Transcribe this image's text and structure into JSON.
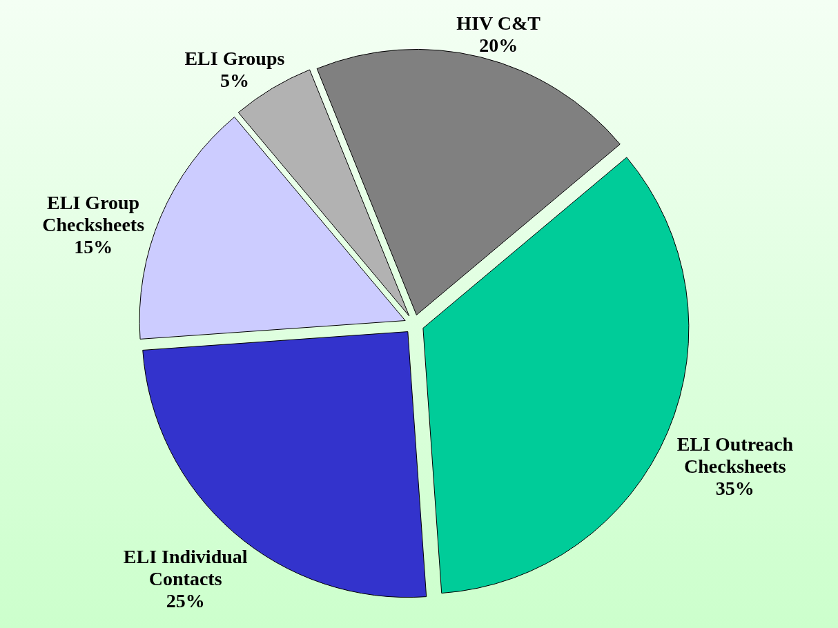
{
  "chart_data": {
    "type": "pie",
    "categories": [
      "HIV C&T",
      "ELI Outreach Checksheets",
      "ELI Individual Contacts",
      "ELI Group Checksheets",
      "ELI Groups"
    ],
    "values": [
      20,
      35,
      25,
      15,
      5
    ],
    "colors": [
      "#808080",
      "#00cc99",
      "#3333cc",
      "#ccccff",
      "#b2b2b2"
    ],
    "value_labels": [
      "20%",
      "35%",
      "25%",
      "15%",
      "5%"
    ]
  }
}
